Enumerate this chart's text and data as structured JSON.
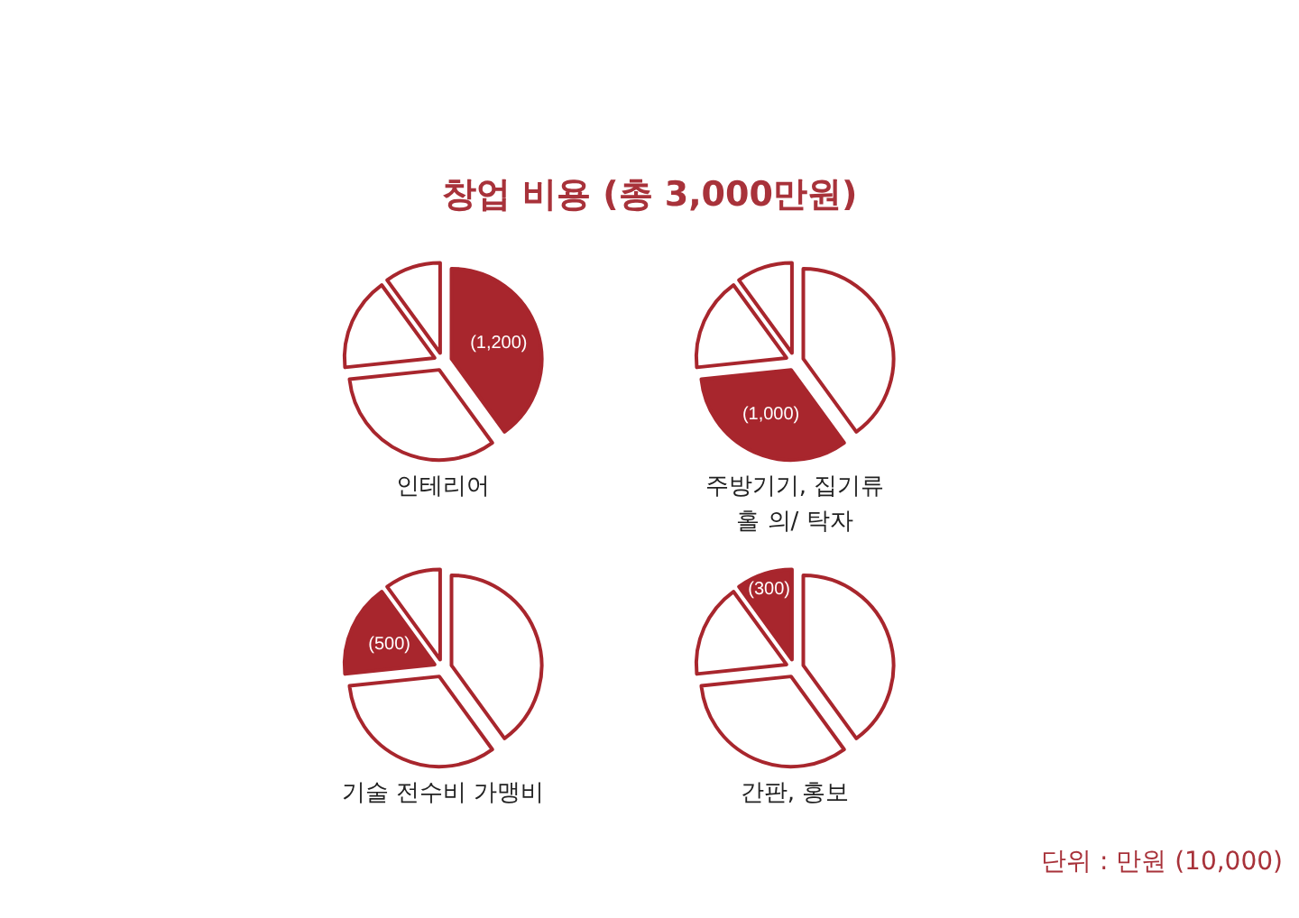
{
  "chart_data": [
    {
      "type": "pie",
      "title": "창업 비용 (총 3,000만원)",
      "xlabel": "인테리어",
      "values": [
        1200,
        1000,
        500,
        300
      ],
      "colors": [
        "#a8262d",
        "#ffffff",
        "#ffffff",
        "#ffffff"
      ],
      "value_labels": [
        "(1,200)",
        null,
        null,
        null
      ]
    },
    {
      "type": "pie",
      "xlabel": "주방기기, 집기류\n홀 의/ 탁자",
      "values": [
        1200,
        1000,
        500,
        300
      ],
      "colors": [
        "#ffffff",
        "#a8262d",
        "#ffffff",
        "#ffffff"
      ],
      "value_labels": [
        null,
        "(1,000)",
        null,
        null
      ]
    },
    {
      "type": "pie",
      "xlabel": "기술 전수비 가맹비",
      "values": [
        1200,
        1000,
        500,
        300
      ],
      "colors": [
        "#ffffff",
        "#ffffff",
        "#a8262d",
        "#ffffff"
      ],
      "value_labels": [
        null,
        null,
        "(500)",
        null
      ]
    },
    {
      "type": "pie",
      "xlabel": "간판, 홍보",
      "values": [
        1200,
        1000,
        500,
        300
      ],
      "colors": [
        "#ffffff",
        "#ffffff",
        "#ffffff",
        "#a8262d"
      ],
      "value_labels": [
        null,
        null,
        null,
        "(300)"
      ],
      "annotations": [
        "단위 : 만원 (10,000)"
      ]
    }
  ]
}
